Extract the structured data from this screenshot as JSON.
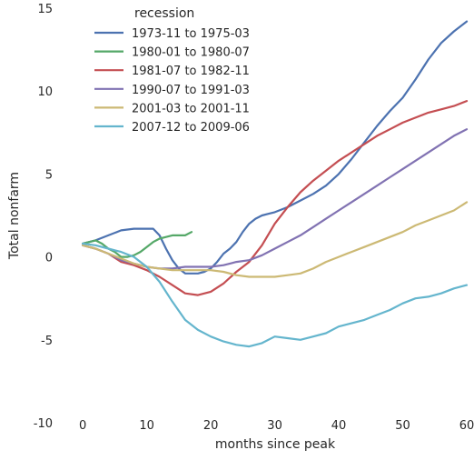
{
  "chart_data": {
    "type": "line",
    "xlabel": "months since peak",
    "ylabel": "Total nonfarm",
    "xlim": [
      -3,
      60
    ],
    "ylim": [
      -10,
      15
    ],
    "xticks": [
      0,
      10,
      20,
      30,
      40,
      50,
      60
    ],
    "yticks": [
      -10,
      -5,
      0,
      5,
      10,
      15
    ],
    "grid": false,
    "legend": {
      "title": "recession",
      "placement": "top-left"
    },
    "series": [
      {
        "name": "1973-11 to 1975-03",
        "color": "#4c72b0",
        "x": [
          0,
          2,
          4,
          6,
          8,
          10,
          11,
          12,
          13,
          14,
          15,
          16,
          17,
          18,
          19,
          20,
          21,
          22,
          23,
          24,
          25,
          26,
          27,
          28,
          29,
          30,
          32,
          34,
          36,
          38,
          40,
          42,
          44,
          46,
          48,
          50,
          52,
          54,
          56,
          58,
          60
        ],
        "y": [
          0.8,
          1.0,
          1.3,
          1.6,
          1.7,
          1.7,
          1.7,
          1.3,
          0.5,
          -0.2,
          -0.7,
          -1.0,
          -1.0,
          -1.0,
          -0.9,
          -0.7,
          -0.3,
          0.2,
          0.5,
          0.9,
          1.5,
          2.0,
          2.3,
          2.5,
          2.6,
          2.7,
          3.0,
          3.4,
          3.8,
          4.3,
          5.0,
          5.9,
          6.9,
          7.9,
          8.8,
          9.6,
          10.7,
          11.9,
          12.9,
          13.6,
          14.2
        ]
      },
      {
        "name": "1980-01 to 1980-07",
        "color": "#55a868",
        "x": [
          0,
          1,
          2,
          3,
          4,
          5,
          6,
          7,
          8,
          9,
          10,
          11,
          12,
          13,
          14,
          15,
          16,
          17
        ],
        "y": [
          0.8,
          0.9,
          1.0,
          0.8,
          0.5,
          0.3,
          0.0,
          0.0,
          0.1,
          0.3,
          0.6,
          0.9,
          1.1,
          1.2,
          1.3,
          1.3,
          1.3,
          1.5
        ]
      },
      {
        "name": "1981-07 to 1982-11",
        "color": "#c44e52",
        "x": [
          0,
          2,
          4,
          6,
          8,
          10,
          12,
          14,
          16,
          18,
          20,
          22,
          24,
          26,
          28,
          30,
          32,
          34,
          36,
          38,
          40,
          42,
          44,
          46,
          48,
          50,
          52,
          54,
          56,
          58,
          60
        ],
        "y": [
          0.7,
          0.5,
          0.2,
          -0.3,
          -0.5,
          -0.8,
          -1.2,
          -1.7,
          -2.2,
          -2.3,
          -2.1,
          -1.6,
          -0.9,
          -0.3,
          0.7,
          2.0,
          3.0,
          3.9,
          4.6,
          5.2,
          5.8,
          6.3,
          6.8,
          7.3,
          7.7,
          8.1,
          8.4,
          8.7,
          8.9,
          9.1,
          9.4
        ]
      },
      {
        "name": "1990-07 to 1991-03",
        "color": "#8172b2",
        "x": [
          0,
          2,
          4,
          6,
          8,
          10,
          12,
          14,
          16,
          18,
          20,
          22,
          24,
          26,
          28,
          30,
          32,
          34,
          36,
          38,
          40,
          42,
          44,
          46,
          48,
          50,
          52,
          54,
          56,
          58,
          60
        ],
        "y": [
          0.7,
          0.5,
          0.2,
          -0.2,
          -0.4,
          -0.6,
          -0.7,
          -0.7,
          -0.6,
          -0.6,
          -0.6,
          -0.5,
          -0.3,
          -0.2,
          0.1,
          0.5,
          0.9,
          1.3,
          1.8,
          2.3,
          2.8,
          3.3,
          3.8,
          4.3,
          4.8,
          5.3,
          5.8,
          6.3,
          6.8,
          7.3,
          7.7
        ]
      },
      {
        "name": "2001-03 to 2001-11",
        "color": "#ccb974",
        "x": [
          0,
          2,
          4,
          6,
          8,
          10,
          12,
          14,
          16,
          18,
          20,
          22,
          24,
          26,
          28,
          30,
          32,
          34,
          36,
          38,
          40,
          42,
          44,
          46,
          48,
          50,
          52,
          54,
          56,
          58,
          60
        ],
        "y": [
          0.7,
          0.5,
          0.2,
          -0.1,
          -0.4,
          -0.6,
          -0.7,
          -0.8,
          -0.8,
          -0.8,
          -0.8,
          -0.9,
          -1.1,
          -1.2,
          -1.2,
          -1.2,
          -1.1,
          -1.0,
          -0.7,
          -0.3,
          0.0,
          0.3,
          0.6,
          0.9,
          1.2,
          1.5,
          1.9,
          2.2,
          2.5,
          2.8,
          3.3
        ]
      },
      {
        "name": "2007-12 to 2009-06",
        "color": "#64b5cd",
        "x": [
          0,
          2,
          4,
          6,
          8,
          10,
          12,
          14,
          16,
          18,
          20,
          22,
          24,
          26,
          28,
          30,
          32,
          34,
          36,
          38,
          40,
          42,
          44,
          46,
          48,
          50,
          52,
          54,
          56,
          58,
          60
        ],
        "y": [
          0.8,
          0.7,
          0.5,
          0.3,
          0.0,
          -0.6,
          -1.5,
          -2.7,
          -3.8,
          -4.4,
          -4.8,
          -5.1,
          -5.3,
          -5.4,
          -5.2,
          -4.8,
          -4.9,
          -5.0,
          -4.8,
          -4.6,
          -4.2,
          -4.0,
          -3.8,
          -3.5,
          -3.2,
          -2.8,
          -2.5,
          -2.4,
          -2.2,
          -1.9,
          -1.7
        ]
      }
    ]
  }
}
